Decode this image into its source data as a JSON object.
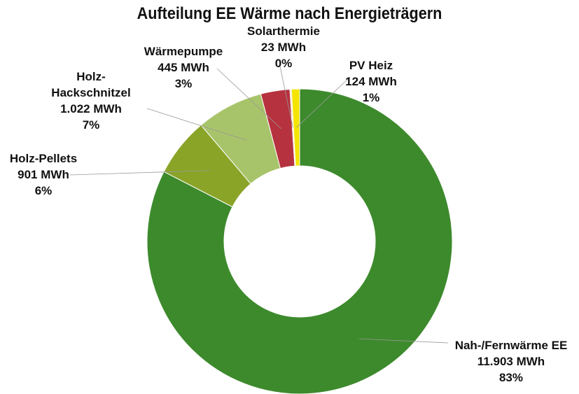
{
  "chart_data": {
    "type": "donut",
    "title": "Aufteilung EE Wärme nach Energieträgern",
    "categories": [
      "Nah-/Fernwärme EE",
      "Holz-Pellets",
      "Holz-Hackschnitzel",
      "Wärmepumpe",
      "Solarthermie",
      "PV Heiz"
    ],
    "values": [
      11903,
      901,
      1022,
      445,
      23,
      124
    ],
    "value_labels": [
      "11.903 MWh",
      "901 MWh",
      "1.022 MWh",
      "445 MWh",
      "23 MWh",
      "124 MWh"
    ],
    "percent_labels": [
      "83%",
      "6%",
      "7%",
      "3%",
      "0%",
      "1%"
    ],
    "colors": [
      "#3d8a2c",
      "#8aa428",
      "#a8c46a",
      "#b6323f",
      "#f2e6b0",
      "#f4e400"
    ]
  }
}
